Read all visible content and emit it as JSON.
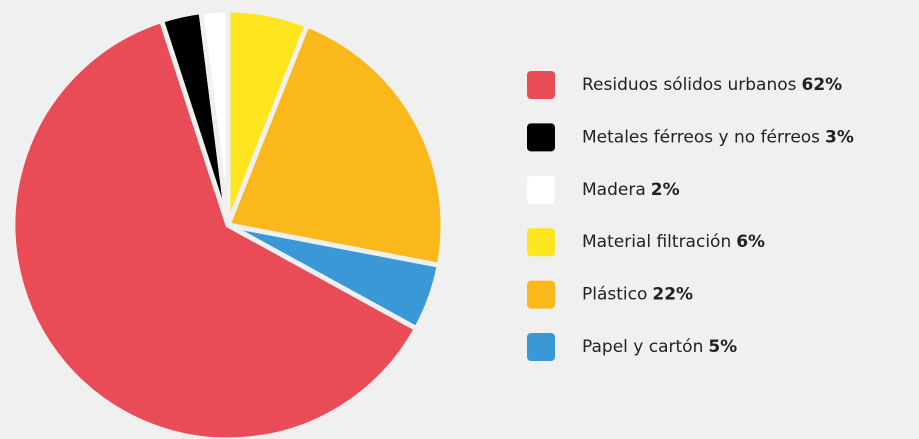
{
  "chart_data": {
    "type": "pie",
    "categories": [
      "Residuos sólidos urbanos",
      "Metales férreos y no férreos",
      "Madera",
      "Material filtración",
      "Plástico",
      "Papel y cartón"
    ],
    "values": [
      62,
      3,
      2,
      6,
      22,
      5
    ],
    "value_labels": [
      "62%",
      "3%",
      "2%",
      "6%",
      "22%",
      "5%"
    ],
    "colors": [
      "#e94b57",
      "#000000",
      "#ffffff",
      "#fde61d",
      "#fbb81b",
      "#3a98d7"
    ],
    "legend": "right"
  }
}
